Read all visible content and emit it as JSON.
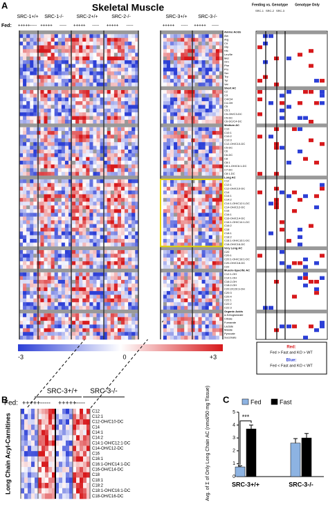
{
  "panel_labels": [
    "A",
    "B",
    "C"
  ],
  "heatmap_a": {
    "title": "Skeletal Muscle",
    "groups": [
      "SRC-1+/+",
      "SRC-1-/-",
      "SRC-2+/+",
      "SRC-2-/-",
      "SRC-3+/+",
      "SRC-3-/-"
    ],
    "fed_label": "Fed:",
    "fed_signs": [
      "+++++",
      "-----"
    ],
    "rows": [
      "Amino Acids",
      "Ala",
      "Arg",
      "Cit",
      "Gly",
      "His",
      "Leu/Ile",
      "Met",
      "Orn",
      "Phe",
      "Pro",
      "Ser",
      "Trp",
      "Tyr",
      "Val",
      "Short AC",
      "C2",
      "C3",
      "C4/Ci4",
      "C4-OH",
      "C5",
      "C5:1",
      "C5-OH/C3-DC",
      "C5-DC",
      "C6-DC/C4-DC",
      "Medium AC",
      "C10",
      "C10:1",
      "C10:2",
      "C10:3",
      "C12-OH/C10-DC",
      "C5-DC",
      "C6",
      "C6-DC",
      "C8",
      "C8:1",
      "C8:1-OH/C6:1-DC",
      "C7-DC",
      "C8:1-DC",
      "Long AC",
      "C12",
      "C12:1",
      "C12-OH/C10-DC",
      "C14",
      "C14:1",
      "C14:2",
      "C14:1-OH/C12:1-DC",
      "C14-OH/C12-DC",
      "C16",
      "C16:1",
      "C16-OH/C14-DC",
      "C16:1-OH/C14:1-DC",
      "C16:2",
      "C18",
      "C18:1",
      "C18:2",
      "C18:1-OH/C16:1-DC",
      "C18-OH/C16-DC",
      "Very Long AC",
      "C20",
      "C20:1",
      "C20:1-OH/C18:1-DC",
      "C20-OH/C18-DC",
      "C22",
      "Muscle-Specific AC",
      "C12:1-OH",
      "C14:1-OH",
      "C16:2-OH",
      "C18:2-OH",
      "C20:2/C20:3-OH",
      "C20:3",
      "C20:4",
      "C22:1",
      "C22:2",
      "C22:3",
      "Organic Acids",
      "α-Ketoglutarate",
      "Citrate",
      "Fumarate",
      "Lactate",
      "Malate",
      "Pyruvate",
      "Succinate"
    ],
    "headers": [
      "Amino Acids",
      "Short AC",
      "Medium AC",
      "Long AC",
      "Very Long AC",
      "Muscle-Specific AC",
      "Organic Acids"
    ],
    "colorbar_ticks": [
      "-3",
      "0",
      "+3"
    ]
  },
  "side_columns": {
    "feeding_header": "Feeding vs. Genotype",
    "genotype_header": "Genotype Only",
    "feeding_subs": [
      "SRC-1",
      "SRC-2",
      "SRC-3"
    ]
  },
  "legend": {
    "red_label": "Red:",
    "red_text": "Fed > Fast and KO > WT",
    "blue_label": "Blue:",
    "blue_text": "Fed < Fast and KO < WT"
  },
  "heatmap_b": {
    "groups": [
      "SRC-3+/+",
      "SRC-3-/-"
    ],
    "fed_label": "Fed:",
    "fed_signs": [
      "+++++",
      "-----"
    ],
    "y_label": "Long Chain Acyl-Carnitines",
    "rows": [
      "C12",
      "C12:1",
      "C12-OH/C10-DC",
      "C14",
      "C14:1",
      "C14:2",
      "C14:1-OH/C12:1-DC",
      "C14-OH/C12-DC",
      "C16",
      "C16:1",
      "C16:1-OH/C14:1-DC",
      "C16-OH/C14-DC",
      "C18",
      "C18:1",
      "C18:2",
      "C18:1-OH/C16:1-DC",
      "C18-OH/C16-DC"
    ]
  },
  "chart_data": {
    "type": "bar",
    "categories": [
      "SRC-3+/+",
      "SRC-3-/-"
    ],
    "y_label": "Avg. of Σ of Only Long Chain AC (nmol/50 mg Tissue)",
    "series": [
      {
        "name": "Fed",
        "color": "#8db3e2",
        "values": [
          0.75,
          2.6
        ],
        "errors": [
          0.08,
          0.35
        ]
      },
      {
        "name": "Fast",
        "color": "#000000",
        "values": [
          3.7,
          3.0
        ],
        "errors": [
          0.3,
          0.35
        ]
      }
    ],
    "ylim": [
      0,
      5
    ],
    "yticks": [
      0,
      1,
      2,
      3,
      4,
      5
    ],
    "annotation": "***"
  }
}
